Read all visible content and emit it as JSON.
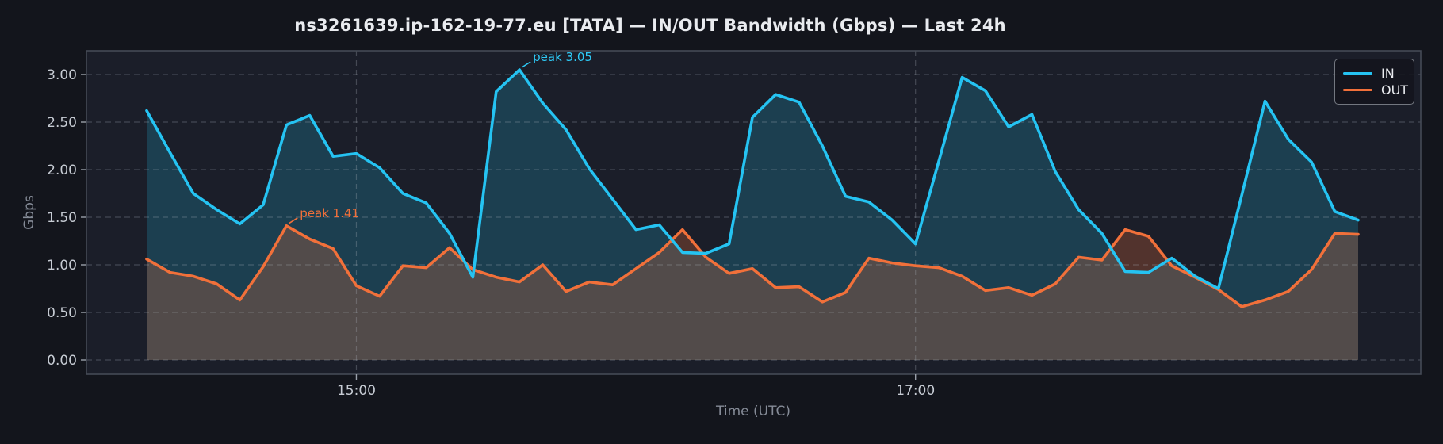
{
  "chart_data": {
    "type": "line",
    "title": "ns3261639.ip-162-19-77.eu [TATA] — IN/OUT Bandwidth (Gbps) — Last 24h",
    "xlabel": "Time (UTC)",
    "ylabel": "Gbps",
    "x_start": "14:15",
    "x_step_minutes": 5,
    "x_tick_labels": [
      "15:00",
      "17:00"
    ],
    "x_tick_indices": [
      9,
      33
    ],
    "y_tick_labels": [
      "0.00",
      "0.50",
      "1.00",
      "1.50",
      "2.00",
      "2.50",
      "3.00"
    ],
    "y_tick_values": [
      0,
      0.5,
      1,
      1.5,
      2,
      2.5,
      3
    ],
    "ylim": [
      -0.15,
      3.25
    ],
    "grid": true,
    "legend_position": "upper right",
    "series": [
      {
        "name": "IN",
        "color": "#25c3f2",
        "fill_opacity": 0.2,
        "values": [
          2.62,
          2.18,
          1.75,
          1.58,
          1.43,
          1.63,
          2.47,
          2.57,
          2.14,
          2.17,
          2.02,
          1.75,
          1.65,
          1.33,
          0.87,
          2.82,
          3.05,
          2.7,
          2.42,
          2.01,
          1.69,
          1.37,
          1.42,
          1.13,
          1.12,
          1.22,
          2.55,
          2.79,
          2.71,
          2.25,
          1.72,
          1.66,
          1.47,
          1.22,
          2.09,
          2.97,
          2.83,
          2.45,
          2.58,
          1.98,
          1.58,
          1.33,
          0.93,
          0.92,
          1.07,
          0.88,
          0.75,
          1.73,
          2.72,
          2.32,
          2.08,
          1.56,
          1.47
        ]
      },
      {
        "name": "OUT",
        "color": "#f1703a",
        "fill_opacity": 0.26,
        "values": [
          1.06,
          0.92,
          0.88,
          0.8,
          0.63,
          0.98,
          1.41,
          1.27,
          1.17,
          0.78,
          0.67,
          0.99,
          0.97,
          1.18,
          0.95,
          0.87,
          0.82,
          1.0,
          0.72,
          0.82,
          0.79,
          0.96,
          1.13,
          1.37,
          1.08,
          0.91,
          0.96,
          0.76,
          0.77,
          0.61,
          0.71,
          1.07,
          1.02,
          0.99,
          0.97,
          0.88,
          0.73,
          0.76,
          0.68,
          0.8,
          1.08,
          1.05,
          1.37,
          1.3,
          0.99,
          0.87,
          0.74,
          0.56,
          0.63,
          0.72,
          0.95,
          1.33,
          1.32
        ]
      }
    ],
    "annotations": [
      {
        "text": "peak 3.05",
        "series": 0,
        "index": 16,
        "color": "#2ec9f5"
      },
      {
        "text": "peak 1.41",
        "series": 1,
        "index": 6,
        "color": "#f1703a"
      }
    ],
    "colors": {
      "outer_background": "#13151c",
      "plot_background": "#1b1e29",
      "gridline": "rgba(170,176,186,0.30)",
      "spine": "#454a55",
      "tick": "#9aa0aa",
      "tick_label": "#c7ccd4",
      "axis_label": "#858b97",
      "title": "#e9ebef"
    }
  }
}
